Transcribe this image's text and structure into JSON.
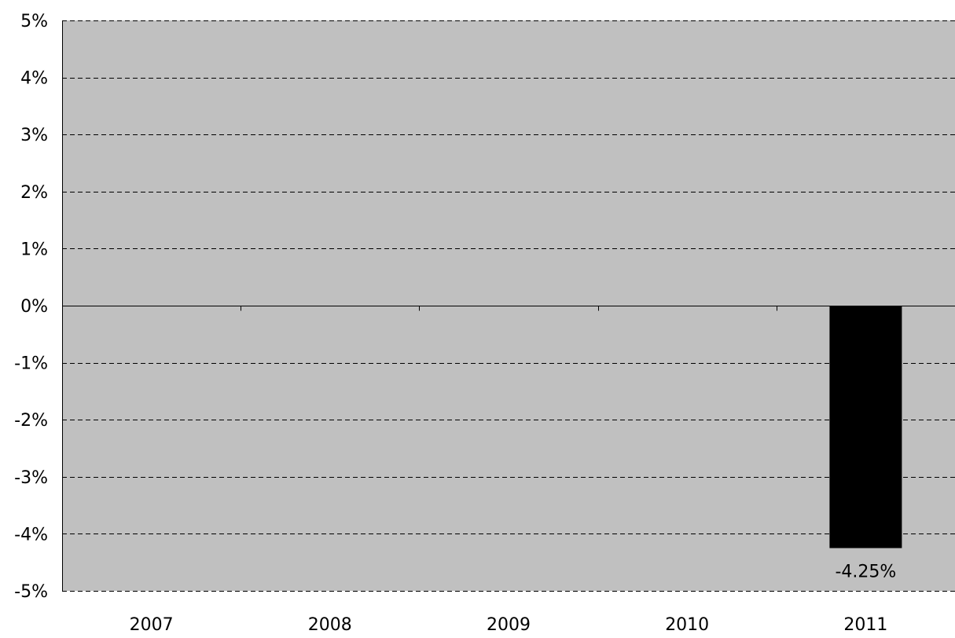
{
  "chart_data": {
    "type": "bar",
    "categories": [
      "2007",
      "2008",
      "2009",
      "2010",
      "2011"
    ],
    "values": [
      null,
      null,
      null,
      null,
      -4.25
    ],
    "data_labels": [
      "",
      "",
      "",
      "",
      "-4.25%"
    ],
    "ylim": [
      -5,
      5
    ],
    "yticks": [
      5,
      4,
      3,
      2,
      1,
      0,
      -1,
      -2,
      -3,
      -4,
      -5
    ],
    "ytick_labels": [
      "5%",
      "4%",
      "3%",
      "2%",
      "1%",
      "0%",
      "-1%",
      "-2%",
      "-3%",
      "-4%",
      "-5%"
    ],
    "grid": true,
    "grid_style": "dashed",
    "title": "",
    "xlabel": "",
    "ylabel": "",
    "colors": {
      "plot_background": "#c0c0c0",
      "bar": "#000000",
      "gridline": "#000000"
    }
  }
}
